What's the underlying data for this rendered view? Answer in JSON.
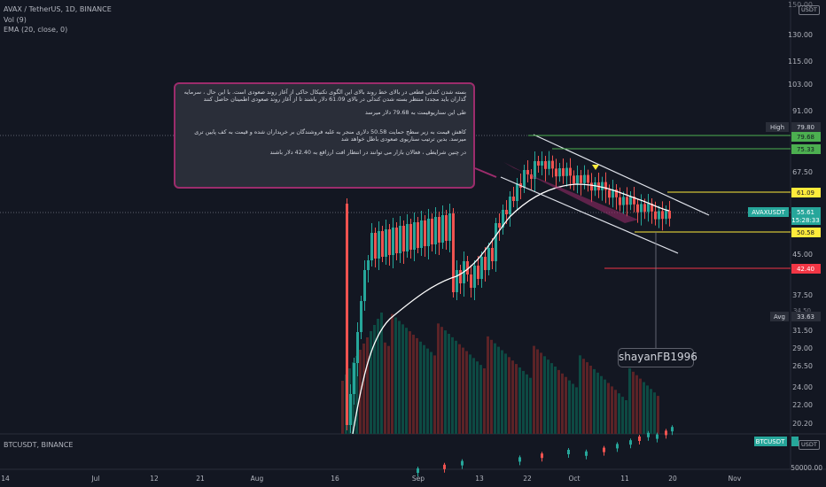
{
  "header": {
    "symbol_line": "AVAX / TetherUS, 1D, BINANCE",
    "vol_line": "Vol (9)",
    "ema_line": "EMA (20, close, 0)",
    "sub_symbol_line": "BTCUSDT, BINANCE"
  },
  "currency": "USDT",
  "note": {
    "p1": "بسته شدن کندلی قطعی در بالای خط روند بالای این الگوی تکنیکال حاکی از آغاز روند صعودی است. با این حال ، سرمایه گذاران باید مجددا منتظر بسته شدن کندلی در بالای 61.09 دلار باشند تا از آغاز روند صعودی اطمینان حاصل کنند",
    "p2": "طی این سناریوقیمت به 79.68 دلار میرسد",
    "p3": "کاهش قیمت به زیر سطح حمایت 50.58 دلاری منجر به غلبه فروشندگان بر خریداران شده و قیمت به کف پایین تری میرسد. بدین ترتیب سناریوی صعودی باطل خواهد شد",
    "p4": "در چنین شرایطی ، فعالان بازار می توانند در انتظار افت ارزاقع به 42.40 دلار باشند"
  },
  "author": "shayanFB1996",
  "price_axis_ticks": [
    "130.00",
    "115.00",
    "103.00",
    "91.00",
    "67.50",
    "45.00",
    "37.50",
    "31.50",
    "29.00",
    "26.50",
    "24.00",
    "22.00",
    "20.20"
  ],
  "price_axis_partial_top": "150.00",
  "price_axis_partial_mid": "34.50",
  "level_labels": [
    {
      "label": "High",
      "value": "79.80",
      "color": "#2a2e39",
      "text": "#d1d4dc"
    },
    {
      "label": "",
      "value": "79.68",
      "color": "#4caf50",
      "text": "#131722"
    },
    {
      "label": "",
      "value": "75.33",
      "color": "#4caf50",
      "text": "#131722"
    },
    {
      "label": "",
      "value": "61.09",
      "color": "#ffeb3b",
      "text": "#131722"
    },
    {
      "label": "AVAXUSDT",
      "value": "55.61",
      "color": "#26a69a",
      "text": "#ffffff"
    },
    {
      "label": "",
      "value": "15:28:33",
      "color": "#26a69a",
      "text": "#ffffff"
    },
    {
      "label": "",
      "value": "50.58",
      "color": "#ffeb3b",
      "text": "#131722"
    },
    {
      "label": "",
      "value": "42.40",
      "color": "#f23645",
      "text": "#ffffff"
    },
    {
      "label": "Avg",
      "value": "33.63",
      "color": "#2a2e39",
      "text": "#d1d4dc"
    }
  ],
  "sub_axis": {
    "label": "BTCUSDT",
    "value": "",
    "tick": "50000.00"
  },
  "time_axis": [
    "14",
    "Jul",
    "12",
    "21",
    "Aug",
    "16",
    "Sep",
    "13",
    "22",
    "Oct",
    "11",
    "20",
    "Nov"
  ],
  "colors": {
    "up": "#26a69a",
    "down": "#ef5350",
    "bg": "#131722",
    "ema": "#ffffff",
    "note_border": "#9c2c6c"
  }
}
